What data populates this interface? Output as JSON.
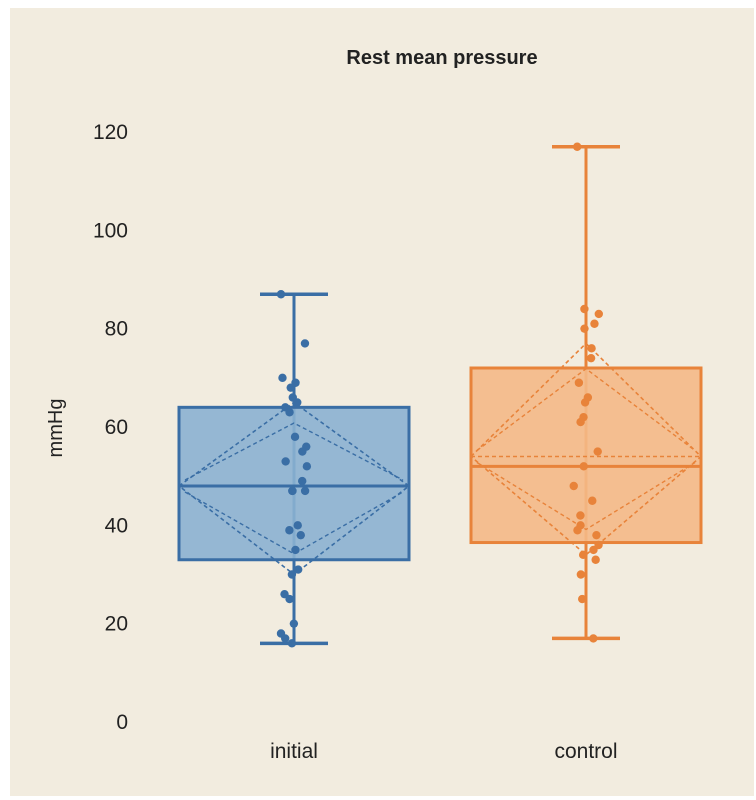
{
  "chart_data": {
    "type": "box",
    "title": "Rest mean pressure",
    "ylabel": "mmHg",
    "xlabel": "",
    "ylim": [
      0,
      120
    ],
    "yticks": [
      0,
      20,
      40,
      60,
      80,
      100,
      120
    ],
    "categories": [
      "initial",
      "control"
    ],
    "grid": false,
    "legend": "none",
    "series": [
      {
        "category": "initial",
        "color": "#3a6ea5",
        "fill": "#8bb1d1",
        "whisker_low": 16,
        "q1": 33,
        "median": 48,
        "q3": 64,
        "whisker_high": 87,
        "mean": 48,
        "mean_ci": [
          30,
          65
        ],
        "points": [
          87,
          77,
          70,
          69,
          68,
          66,
          65,
          64,
          63,
          58,
          56,
          55,
          53,
          52,
          49,
          47,
          47,
          47,
          40,
          39,
          38,
          35,
          31,
          30,
          26,
          25,
          20,
          18,
          17,
          16
        ]
      },
      {
        "category": "control",
        "color": "#e8833a",
        "fill": "#f4b987",
        "whisker_low": 17,
        "q1": 36.5,
        "median": 52,
        "q3": 72,
        "whisker_high": 117,
        "mean": 54,
        "mean_ci": [
          34,
          77
        ],
        "points": [
          117,
          84,
          83,
          81,
          80,
          76,
          74,
          69,
          66,
          65,
          62,
          61,
          55,
          52,
          48,
          45,
          42,
          40,
          39,
          38,
          36,
          35,
          34,
          33,
          30,
          25,
          17
        ]
      }
    ]
  }
}
